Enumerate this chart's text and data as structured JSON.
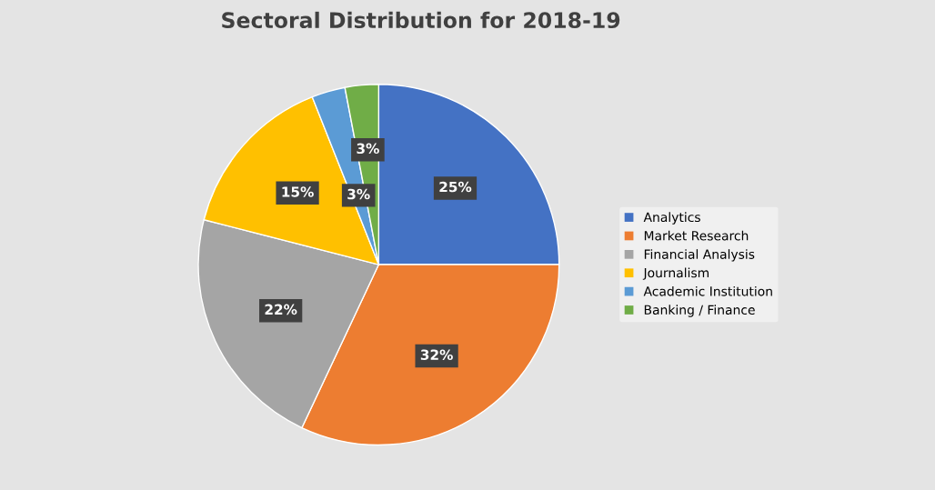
{
  "chart_data": {
    "type": "pie",
    "title": "Sectoral Distribution for 2018-19",
    "categories": [
      "Analytics",
      "Market Research",
      "Financial Analysis",
      "Journalism",
      "Academic Institution",
      "Banking / Finance"
    ],
    "values": [
      25,
      32,
      22,
      15,
      3,
      3
    ],
    "colors": [
      "#4472c4",
      "#ed7d31",
      "#a5a5a5",
      "#ffc000",
      "#5b9bd5",
      "#70ad47"
    ],
    "value_labels": [
      "25%",
      "32%",
      "22%",
      "15%",
      "3%",
      "3%"
    ],
    "legend": "right"
  }
}
